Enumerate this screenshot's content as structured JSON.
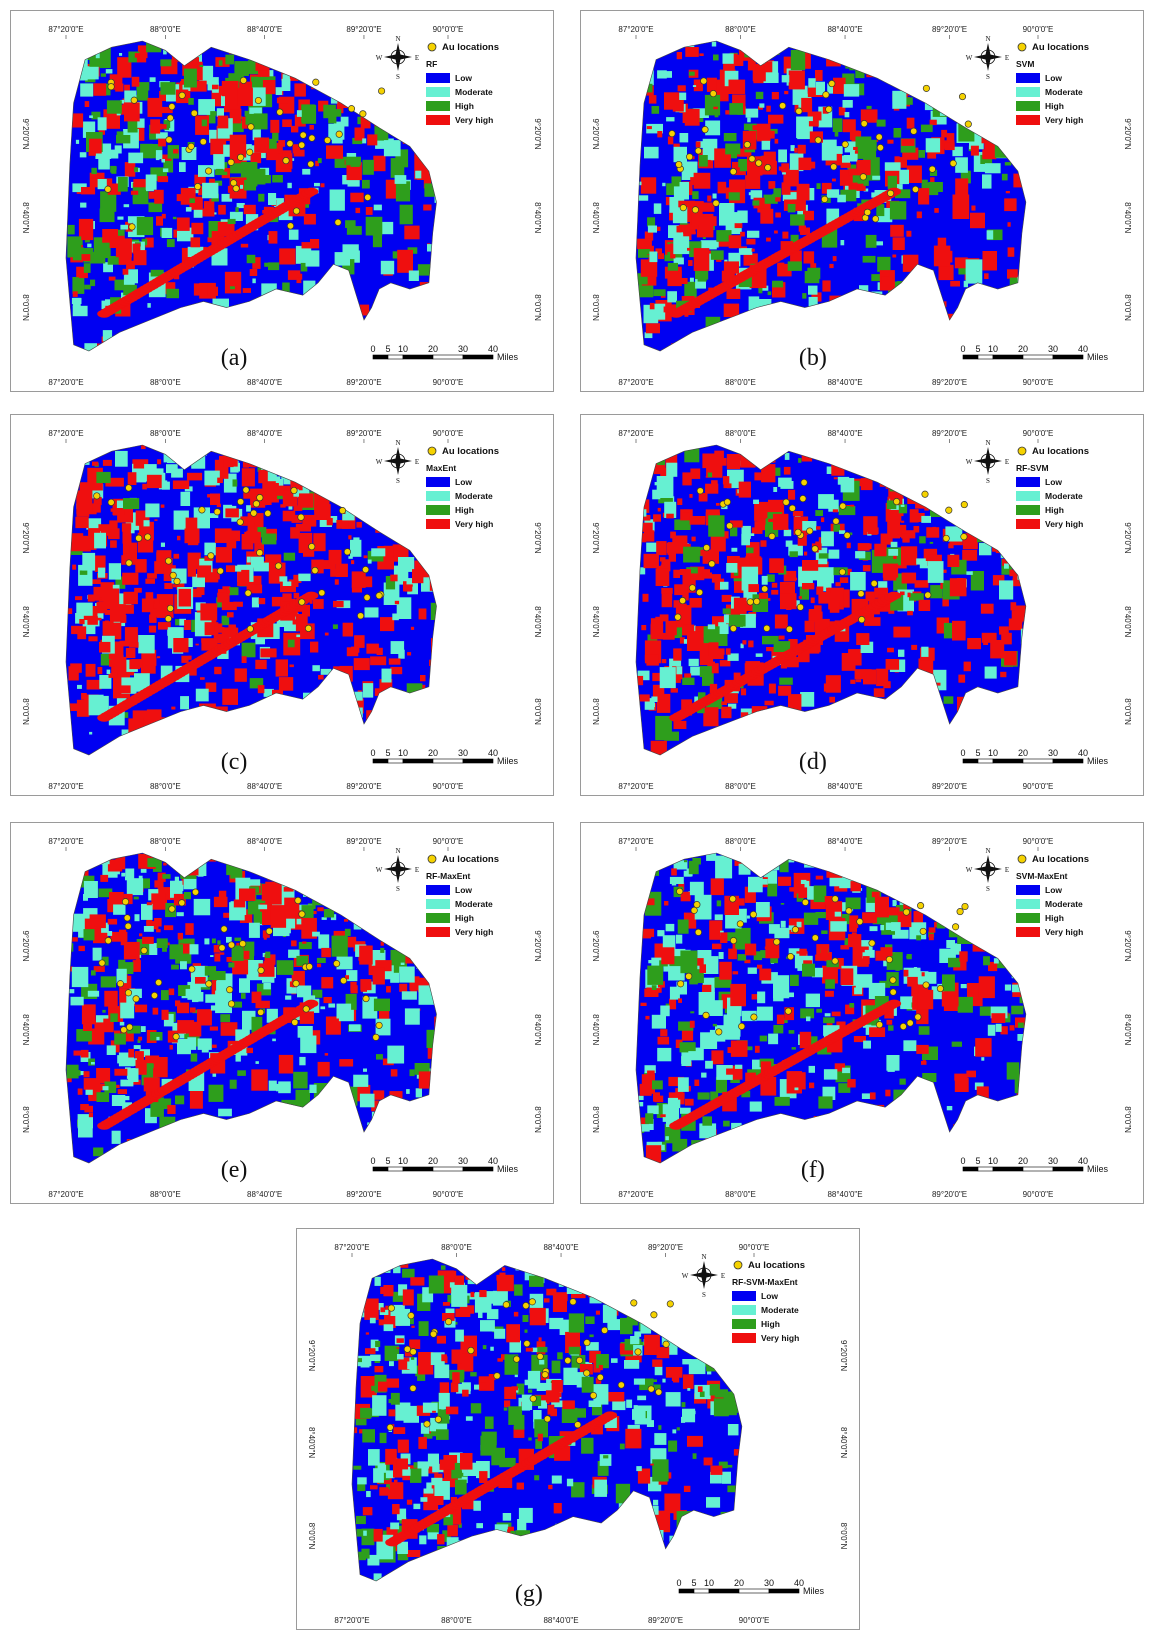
{
  "axes": {
    "top_ticks": [
      "87°20'0\"E",
      "88°0'0\"E",
      "88°40'0\"E",
      "89°20'0\"E",
      "90°0'0\"E"
    ],
    "bottom_ticks": [
      "87°20'0\"E",
      "88°0'0\"E",
      "88°40'0\"E",
      "89°20'0\"E",
      "90°0'0\"E"
    ],
    "side_ticks": [
      "9°20'0\"N",
      "8°40'0\"N",
      "8°0'0\"N"
    ]
  },
  "compass": {
    "n": "N",
    "s": "S",
    "e": "E",
    "w": "W"
  },
  "legend": {
    "au_label": "Au locations",
    "classes": [
      {
        "label": "Low",
        "color": "#0000f2"
      },
      {
        "label": "Moderate",
        "color": "#66f0d2"
      },
      {
        "label": "High",
        "color": "#2e9e1c"
      },
      {
        "label": "Very high",
        "color": "#ef0f0f"
      }
    ]
  },
  "scale_bar": {
    "labels": [
      "0",
      "5",
      "10",
      "20",
      "30",
      "40"
    ],
    "unit": "Miles"
  },
  "colors": {
    "low": "#0000f2",
    "moderate": "#66f0d2",
    "high": "#2e9e1c",
    "very_high": "#ef0f0f",
    "au_marker": "#f5d200"
  },
  "panels": [
    {
      "id": "a",
      "label": "(a)",
      "model": "RF",
      "mix": [
        0.42,
        0.18,
        0.17,
        0.23
      ]
    },
    {
      "id": "b",
      "label": "(b)",
      "model": "SVM",
      "mix": [
        0.4,
        0.16,
        0.14,
        0.3
      ]
    },
    {
      "id": "c",
      "label": "(c)",
      "model": "MaxEnt",
      "mix": [
        0.55,
        0.13,
        0.04,
        0.28
      ]
    },
    {
      "id": "d",
      "label": "(d)",
      "model": "RF-SVM",
      "mix": [
        0.52,
        0.1,
        0.06,
        0.32
      ]
    },
    {
      "id": "e",
      "label": "(e)",
      "model": "RF-MaxEnt",
      "mix": [
        0.5,
        0.18,
        0.1,
        0.22
      ]
    },
    {
      "id": "f",
      "label": "(f)",
      "model": "SVM-MaxEnt",
      "mix": [
        0.48,
        0.2,
        0.14,
        0.18
      ]
    },
    {
      "id": "g",
      "label": "(g)",
      "model": "RF-SVM-MaxEnt",
      "mix": [
        0.45,
        0.2,
        0.16,
        0.19
      ]
    }
  ]
}
